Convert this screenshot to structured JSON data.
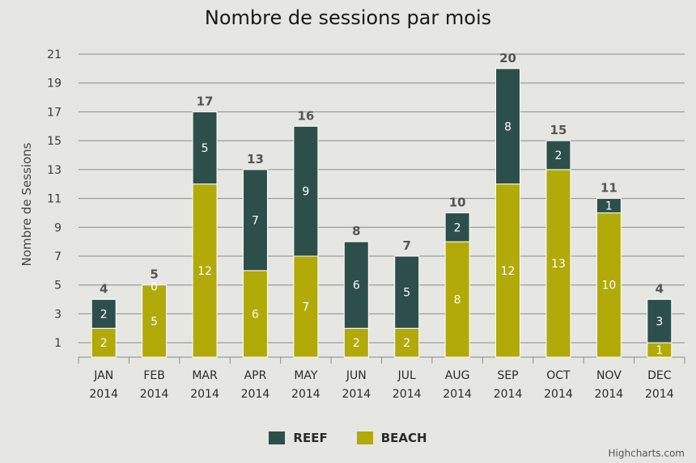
{
  "chart_data": {
    "type": "bar",
    "stacked": true,
    "title": "Nombre de sessions par mois",
    "ylabel": "Nombre de Sessions",
    "xlabel": "",
    "categories": [
      [
        "JAN",
        "2014"
      ],
      [
        "FEB",
        "2014"
      ],
      [
        "MAR",
        "2014"
      ],
      [
        "APR",
        "2014"
      ],
      [
        "MAY",
        "2014"
      ],
      [
        "JUN",
        "2014"
      ],
      [
        "JUL",
        "2014"
      ],
      [
        "AUG",
        "2014"
      ],
      [
        "SEP",
        "2014"
      ],
      [
        "OCT",
        "2014"
      ],
      [
        "NOV",
        "2014"
      ],
      [
        "DEC",
        "2014"
      ]
    ],
    "ylim": [
      0,
      21
    ],
    "yticks": [
      1,
      3,
      5,
      7,
      9,
      11,
      13,
      15,
      17,
      19,
      21
    ],
    "series": [
      {
        "name": "BEACH",
        "color": "#b1aa09",
        "values": [
          2,
          5,
          12,
          6,
          7,
          2,
          2,
          8,
          12,
          13,
          10,
          1
        ]
      },
      {
        "name": "REEF",
        "color": "#2d4f4b",
        "values": [
          2,
          0,
          5,
          7,
          9,
          6,
          5,
          2,
          8,
          2,
          1,
          3
        ]
      }
    ],
    "totals": [
      4,
      5,
      17,
      13,
      16,
      8,
      7,
      10,
      20,
      15,
      11,
      4
    ],
    "grid": true,
    "legend": "bottom-center",
    "credits": "Highcharts.com"
  }
}
